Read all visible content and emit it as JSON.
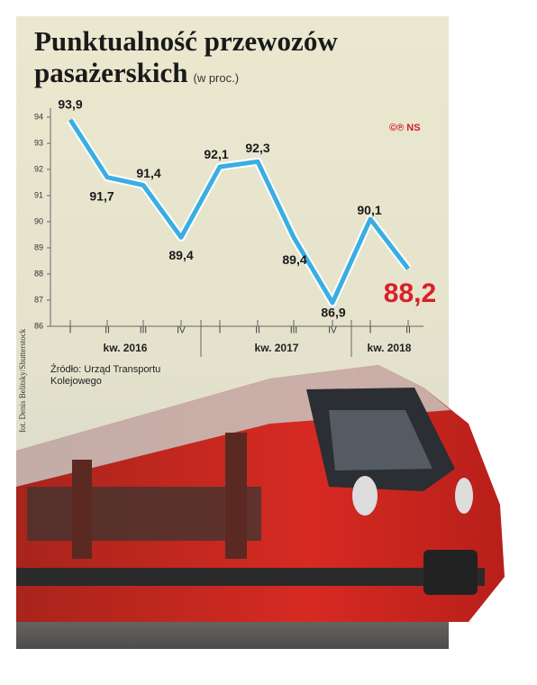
{
  "chart_data": {
    "type": "line",
    "title": "Punktualność przewozów pasażerskich",
    "subtitle": "(w proc.)",
    "categories": [
      "I",
      "II",
      "III",
      "IV",
      "I",
      "II",
      "III",
      "IV",
      "I",
      "II"
    ],
    "groups": [
      "kw. 2016",
      "kw. 2017",
      "kw. 2018"
    ],
    "series": [
      {
        "color": "#3aaee2",
        "values": [
          93.9,
          91.7,
          91.4,
          89.4,
          92.1,
          92.3,
          89.4,
          86.9,
          90.1,
          88.2
        ],
        "value_labels": [
          "93,9",
          "91,7",
          "91,4",
          "89,4",
          "92,1",
          "92,3",
          "89,4",
          "86,9",
          "90,1",
          "88,2"
        ]
      }
    ],
    "ylim": [
      86,
      94
    ],
    "yticks": [
      86,
      87,
      88,
      89,
      90,
      91,
      92,
      93,
      94
    ],
    "copyright": "©℗ NS",
    "source": "Źródło: Urząd Transportu Kolejowego",
    "photo_credit": "fot. Denis Belitsky/Shutterstock"
  }
}
